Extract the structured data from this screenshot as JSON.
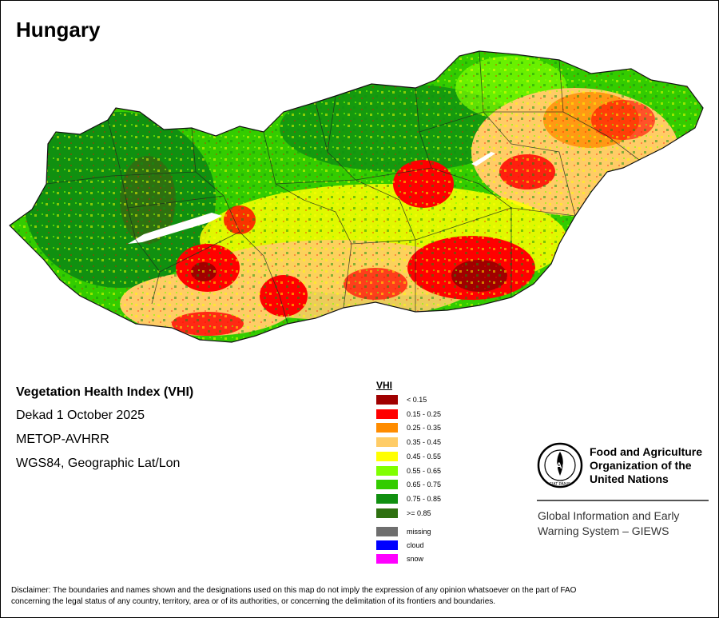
{
  "title": "Hungary",
  "info": {
    "index_name": "Vegetation Health Index (VHI)",
    "period": "Dekad 1 October 2025",
    "sensor": "METOP-AVHRR",
    "projection": "WGS84, Geographic Lat/Lon"
  },
  "legend": {
    "title": "VHI",
    "classes": [
      {
        "label": "< 0.15",
        "color": "#a00000"
      },
      {
        "label": "0.15 - 0.25",
        "color": "#ff0000"
      },
      {
        "label": "0.25 - 0.35",
        "color": "#ff8c00"
      },
      {
        "label": "0.35 - 0.45",
        "color": "#ffcc66"
      },
      {
        "label": "0.45 - 0.55",
        "color": "#ffff00"
      },
      {
        "label": "0.55 - 0.65",
        "color": "#80ff00"
      },
      {
        "label": "0.65 - 0.75",
        "color": "#33cc00"
      },
      {
        "label": "0.75 - 0.85",
        "color": "#109010"
      },
      {
        "label": ">= 0.85",
        "color": "#2e7010"
      }
    ],
    "special": [
      {
        "label": "missing",
        "color": "#6e6e6e"
      },
      {
        "label": "cloud",
        "color": "#0000ff"
      },
      {
        "label": "snow",
        "color": "#ff00ff"
      }
    ]
  },
  "org": {
    "name_line1": "Food and Agriculture",
    "name_line2": "Organization of the",
    "name_line3": "United Nations",
    "system_line1": "Global Information and Early",
    "system_line2": "Warning System – GIEWS",
    "logo_text": "FAO",
    "logo_motto": "FIAT PANIS"
  },
  "disclaimer_line1": "Disclaimer: The boundaries and names shown and the designations used on this map do not imply the expression of any opinion whatsoever on the part of FAO",
  "disclaimer_line2": "concerning the legal status of any country, territory, area or of its authorities, or concerning the delimitation of its frontiers and boundaries."
}
